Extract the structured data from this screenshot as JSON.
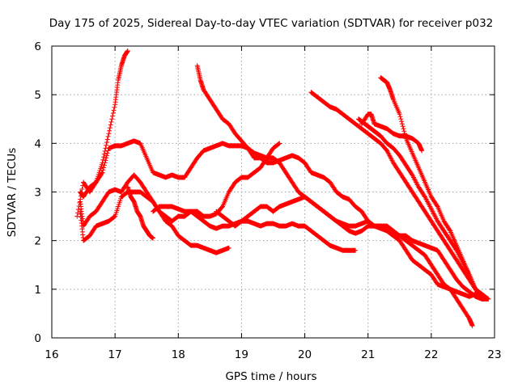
{
  "chart_data": {
    "type": "scatter",
    "title": "Day 175 of 2025, Sidereal Day-to-day VTEC variation (SDTVAR) for receiver p032",
    "xlabel": "GPS time / hours",
    "ylabel": "SDTVAR / TECUs",
    "xlim": [
      16,
      23
    ],
    "ylim": [
      0,
      6
    ],
    "xticks": [
      16,
      17,
      18,
      19,
      20,
      21,
      22,
      23
    ],
    "yticks": [
      0,
      1,
      2,
      3,
      4,
      5,
      6
    ],
    "grid": true,
    "marker": "plus",
    "color": "#ff0000",
    "series": [
      {
        "name": "track-1",
        "x": [
          16.4,
          16.5,
          16.6,
          16.7,
          16.8,
          16.9,
          17.0,
          17.05,
          17.1,
          17.15,
          17.2
        ],
        "y": [
          2.5,
          3.2,
          3.0,
          3.2,
          3.6,
          4.2,
          4.8,
          5.3,
          5.6,
          5.8,
          5.9
        ]
      },
      {
        "name": "track-2",
        "x": [
          16.45,
          16.5,
          16.6,
          16.7,
          16.8,
          16.9,
          17.0,
          17.1,
          17.2,
          17.3,
          17.4,
          17.5,
          17.6,
          17.7,
          17.8,
          17.9,
          18.0,
          18.1,
          18.2,
          18.3,
          18.4,
          18.5,
          18.6,
          18.7,
          18.8,
          18.9,
          19.0,
          19.1,
          19.2,
          19.3,
          19.4,
          19.5,
          19.6,
          19.7,
          19.8,
          19.9,
          20.0,
          20.1,
          20.2,
          20.3,
          20.4,
          20.5,
          20.6,
          20.7,
          20.8,
          20.9,
          21.0,
          21.1,
          21.2,
          21.3,
          21.4,
          21.5,
          21.6,
          21.7,
          21.8,
          21.9,
          22.0,
          22.1,
          22.2,
          22.3,
          22.4,
          22.5,
          22.6,
          22.65
        ],
        "y": [
          3.0,
          2.9,
          3.1,
          3.2,
          3.4,
          3.9,
          3.95,
          3.95,
          4.0,
          4.05,
          4.0,
          3.7,
          3.4,
          3.35,
          3.3,
          3.35,
          3.3,
          3.3,
          3.5,
          3.7,
          3.85,
          3.9,
          3.95,
          4.0,
          3.95,
          3.95,
          3.95,
          3.9,
          3.7,
          3.7,
          3.6,
          3.6,
          3.65,
          3.7,
          3.75,
          3.7,
          3.6,
          3.4,
          3.35,
          3.3,
          3.2,
          3.0,
          2.9,
          2.85,
          2.7,
          2.6,
          2.4,
          2.3,
          2.3,
          2.2,
          2.1,
          2.0,
          1.8,
          1.6,
          1.5,
          1.4,
          1.3,
          1.1,
          1.05,
          1.0,
          0.8,
          0.6,
          0.4,
          0.25
        ]
      },
      {
        "name": "track-3",
        "x": [
          16.45,
          16.5,
          16.6,
          16.7,
          16.8,
          16.9,
          17.0,
          17.1,
          17.2,
          17.3,
          17.4,
          17.5,
          17.6,
          17.7,
          17.8,
          17.9,
          18.0,
          18.1,
          18.2,
          18.3,
          18.4,
          18.5,
          18.6,
          18.7,
          18.8
        ],
        "y": [
          2.8,
          2.3,
          2.5,
          2.6,
          2.8,
          3.0,
          3.05,
          3.0,
          3.2,
          3.35,
          3.2,
          3.0,
          2.8,
          2.6,
          2.4,
          2.3,
          2.1,
          2.0,
          1.9,
          1.9,
          1.85,
          1.8,
          1.75,
          1.8,
          1.85
        ]
      },
      {
        "name": "track-4",
        "x": [
          16.45,
          16.5,
          16.6,
          16.7,
          16.8,
          16.9,
          17.0,
          17.1,
          17.2,
          17.3,
          17.4,
          17.5,
          17.6,
          17.7,
          17.8,
          17.9,
          18.0,
          18.1,
          18.2,
          18.3,
          18.4,
          18.5,
          18.6,
          18.7,
          18.8,
          18.9,
          19.0,
          19.1,
          19.2,
          19.3,
          19.4,
          19.5,
          19.6
        ],
        "y": [
          2.6,
          2.0,
          2.1,
          2.3,
          2.35,
          2.4,
          2.5,
          2.9,
          3.0,
          3.0,
          3.0,
          2.9,
          2.8,
          2.6,
          2.5,
          2.4,
          2.5,
          2.5,
          2.6,
          2.6,
          2.5,
          2.5,
          2.55,
          2.7,
          3.0,
          3.2,
          3.3,
          3.3,
          3.4,
          3.5,
          3.7,
          3.9,
          4.0
        ]
      },
      {
        "name": "track-5",
        "x": [
          17.2,
          17.25,
          17.3,
          17.35,
          17.4,
          17.45,
          17.5,
          17.55,
          17.6
        ],
        "y": [
          3.1,
          2.9,
          2.8,
          2.6,
          2.5,
          2.3,
          2.2,
          2.1,
          2.05
        ]
      },
      {
        "name": "track-6",
        "x": [
          17.6,
          17.7,
          17.8,
          17.9,
          18.0,
          18.1,
          18.2,
          18.3,
          18.4,
          18.5,
          18.6,
          18.7,
          18.8,
          18.9,
          19.0,
          19.1,
          19.2,
          19.3,
          19.4,
          19.5,
          19.6,
          19.7,
          19.8,
          19.9,
          20.0,
          20.1,
          20.2,
          20.3,
          20.4,
          20.5,
          20.6,
          20.7,
          20.8
        ],
        "y": [
          2.6,
          2.7,
          2.7,
          2.7,
          2.65,
          2.6,
          2.6,
          2.5,
          2.4,
          2.3,
          2.25,
          2.3,
          2.3,
          2.35,
          2.4,
          2.4,
          2.35,
          2.3,
          2.35,
          2.35,
          2.3,
          2.3,
          2.35,
          2.3,
          2.3,
          2.2,
          2.1,
          2.0,
          1.9,
          1.85,
          1.8,
          1.8,
          1.8
        ]
      },
      {
        "name": "track-7",
        "x": [
          18.3,
          18.35,
          18.4,
          18.5,
          18.6,
          18.7,
          18.8,
          18.9,
          19.0,
          19.1,
          19.2,
          19.3,
          19.4,
          19.5,
          19.6,
          19.7,
          19.8,
          19.9,
          20.0,
          20.1,
          20.2,
          20.3,
          20.4,
          20.5,
          20.6,
          20.7,
          20.8,
          20.9,
          21.0,
          21.1,
          21.2,
          21.3,
          21.4,
          21.5,
          21.6,
          21.7,
          21.8,
          21.9,
          22.0,
          22.1,
          22.2,
          22.3,
          22.4,
          22.5,
          22.6,
          22.7,
          22.8,
          22.9
        ],
        "y": [
          5.6,
          5.3,
          5.1,
          4.9,
          4.7,
          4.5,
          4.4,
          4.2,
          4.05,
          3.9,
          3.8,
          3.75,
          3.7,
          3.7,
          3.6,
          3.4,
          3.2,
          3.0,
          2.9,
          2.8,
          2.7,
          2.6,
          2.5,
          2.4,
          2.3,
          2.2,
          2.15,
          2.2,
          2.3,
          2.3,
          2.25,
          2.2,
          2.1,
          2.1,
          2.0,
          1.9,
          1.8,
          1.7,
          1.5,
          1.3,
          1.1,
          1.0,
          0.95,
          0.9,
          0.85,
          0.9,
          0.85,
          0.8
        ]
      },
      {
        "name": "track-8",
        "x": [
          18.6,
          18.7,
          18.8,
          18.9,
          19.0,
          19.1,
          19.2,
          19.3,
          19.4,
          19.5,
          19.6,
          19.7,
          19.8,
          19.9,
          20.0,
          20.1,
          20.2,
          20.3,
          20.4,
          20.5,
          20.6,
          20.7,
          20.8,
          20.9,
          21.0,
          21.1,
          21.2,
          21.3,
          21.4,
          21.5,
          21.6,
          21.7,
          21.8,
          21.9,
          22.0,
          22.1,
          22.2,
          22.3,
          22.4,
          22.5,
          22.6,
          22.7,
          22.8,
          22.9
        ],
        "y": [
          2.6,
          2.5,
          2.4,
          2.3,
          2.4,
          2.5,
          2.6,
          2.7,
          2.7,
          2.6,
          2.7,
          2.75,
          2.8,
          2.85,
          2.9,
          2.8,
          2.7,
          2.6,
          2.5,
          2.4,
          2.35,
          2.3,
          2.3,
          2.35,
          2.4,
          2.3,
          2.3,
          2.3,
          2.2,
          2.1,
          2.1,
          2.0,
          1.95,
          1.9,
          1.85,
          1.8,
          1.6,
          1.4,
          1.2,
          1.05,
          0.95,
          0.85,
          0.8,
          0.8
        ]
      },
      {
        "name": "track-9",
        "x": [
          20.1,
          20.2,
          20.3,
          20.4,
          20.5,
          20.6,
          20.7,
          20.8,
          20.9,
          21.0,
          21.1,
          21.2,
          21.3,
          21.4,
          21.5,
          21.6,
          21.7,
          21.8,
          21.9,
          22.0,
          22.1,
          22.2,
          22.3,
          22.4,
          22.5,
          22.6,
          22.7,
          22.8,
          22.9
        ],
        "y": [
          5.05,
          4.95,
          4.85,
          4.75,
          4.7,
          4.6,
          4.5,
          4.4,
          4.3,
          4.2,
          4.1,
          4.0,
          3.85,
          3.6,
          3.4,
          3.2,
          3.0,
          2.8,
          2.6,
          2.4,
          2.2,
          2.0,
          1.8,
          1.6,
          1.4,
          1.2,
          1.0,
          0.9,
          0.8
        ]
      },
      {
        "name": "track-10",
        "x": [
          20.9,
          21.0,
          21.05,
          21.1,
          21.2,
          21.3,
          21.4,
          21.5,
          21.6,
          21.7,
          21.8,
          21.85
        ],
        "y": [
          4.4,
          4.6,
          4.6,
          4.4,
          4.35,
          4.3,
          4.2,
          4.15,
          4.15,
          4.1,
          4.0,
          3.85
        ]
      },
      {
        "name": "track-11",
        "x": [
          20.85,
          20.9,
          20.95,
          21.0,
          21.05,
          21.1,
          21.15,
          21.2,
          21.3,
          21.4,
          21.5,
          21.6,
          21.7,
          21.8,
          21.9,
          22.0,
          22.1,
          22.2,
          22.3,
          22.4,
          22.5,
          22.6,
          22.7
        ],
        "y": [
          4.5,
          4.45,
          4.4,
          4.35,
          4.3,
          4.25,
          4.2,
          4.15,
          4.0,
          3.9,
          3.75,
          3.55,
          3.35,
          3.1,
          2.9,
          2.65,
          2.4,
          2.2,
          2.0,
          1.8,
          1.55,
          1.3,
          1.0
        ]
      },
      {
        "name": "track-12",
        "x": [
          21.2,
          21.25,
          21.3,
          21.35,
          21.4,
          21.5,
          21.6,
          21.7,
          21.8,
          21.9,
          22.0,
          22.1,
          22.2,
          22.3,
          22.4,
          22.5,
          22.6,
          22.7,
          22.8
        ],
        "y": [
          5.35,
          5.3,
          5.25,
          5.1,
          4.9,
          4.6,
          4.1,
          3.8,
          3.5,
          3.2,
          2.9,
          2.7,
          2.4,
          2.2,
          1.9,
          1.6,
          1.3,
          1.0,
          0.8
        ]
      }
    ]
  }
}
